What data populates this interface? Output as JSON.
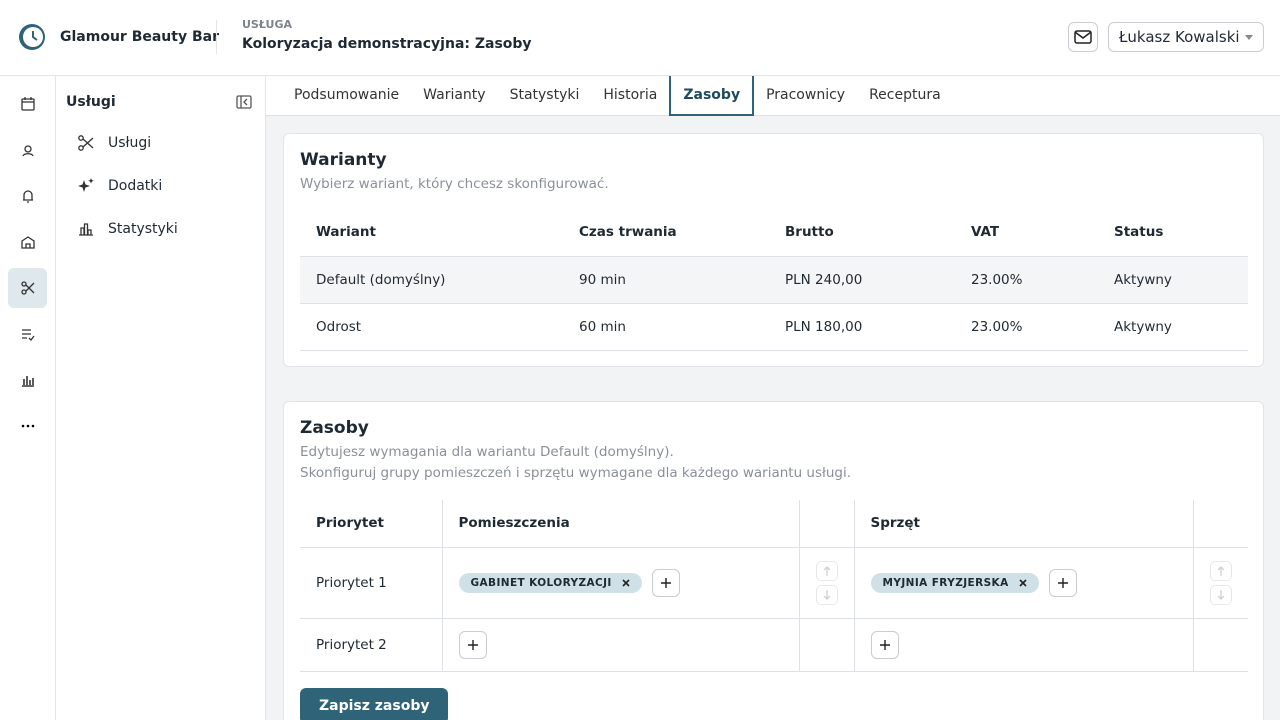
{
  "header": {
    "brand": "Glamour Beauty Bar",
    "eyebrow": "USŁUGA",
    "title": "Koloryzacja demonstracyjna: Zasoby",
    "user": "Łukasz Kowalski"
  },
  "sidebar": {
    "title": "Usługi",
    "items": [
      "Usługi",
      "Dodatki",
      "Statystyki"
    ]
  },
  "tabs": {
    "items": [
      "Podsumowanie",
      "Warianty",
      "Statystyki",
      "Historia",
      "Zasoby",
      "Pracownicy",
      "Receptura"
    ],
    "active": 4
  },
  "variants": {
    "title": "Warianty",
    "subtitle": "Wybierz wariant, który chcesz skonfigurować.",
    "columns": [
      "Wariant",
      "Czas trwania",
      "Brutto",
      "VAT",
      "Status"
    ],
    "rows": [
      [
        "Default (domyślny)",
        "90 min",
        "PLN 240,00",
        "23.00%",
        "Aktywny"
      ],
      [
        "Odrost",
        "60 min",
        "PLN 180,00",
        "23.00%",
        "Aktywny"
      ]
    ]
  },
  "resources": {
    "title": "Zasoby",
    "subtitle": [
      "Edytujesz wymagania dla wariantu Default (domyślny).",
      "Skonfiguruj grupy pomieszczeń i sprzętu wymagane dla każdego wariantu usługi."
    ],
    "columns": [
      "Priorytet",
      "Pomieszczenia",
      "Sprzęt"
    ],
    "rows": [
      {
        "label": "Priorytet 1",
        "rooms": [
          "GABINET KOLORYZACJI"
        ],
        "equipment": [
          "MYJNIA FRYZJERSKA"
        ]
      },
      {
        "label": "Priorytet 2",
        "rooms": [],
        "equipment": []
      }
    ],
    "save": "Zapisz zasoby"
  }
}
